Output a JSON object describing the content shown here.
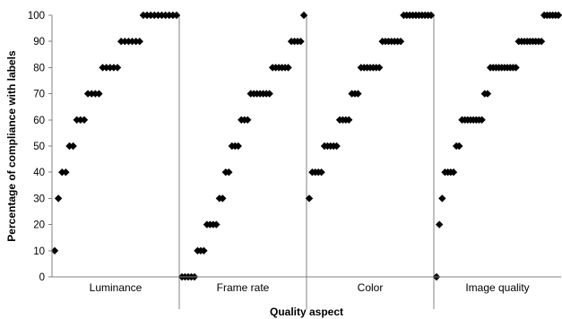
{
  "chart_data": {
    "type": "scatter",
    "title": "",
    "xlabel": "Quality aspect",
    "ylabel": "Percentage of compliance with labels",
    "ylim": [
      0,
      100
    ],
    "yticks": [
      0,
      10,
      20,
      30,
      40,
      50,
      60,
      70,
      80,
      90,
      100
    ],
    "grid": false,
    "legend": "none",
    "marker": "diamond",
    "marker_color": "#000000",
    "categories": [
      "Luminance",
      "Frame rate",
      "Color",
      "Image quality"
    ],
    "series": [
      {
        "category": "Luminance",
        "values": [
          10,
          30,
          40,
          40,
          50,
          50,
          60,
          60,
          60,
          70,
          70,
          70,
          70,
          80,
          80,
          80,
          80,
          80,
          90,
          90,
          90,
          90,
          90,
          90,
          100,
          100,
          100,
          100,
          100,
          100,
          100,
          100,
          100,
          100
        ]
      },
      {
        "category": "Frame rate",
        "values": [
          0,
          0,
          0,
          0,
          0,
          10,
          10,
          10,
          20,
          20,
          20,
          20,
          30,
          30,
          40,
          40,
          50,
          50,
          50,
          60,
          60,
          60,
          70,
          70,
          70,
          70,
          70,
          70,
          70,
          80,
          80,
          80,
          80,
          80,
          80,
          90,
          90,
          90,
          90,
          100
        ]
      },
      {
        "category": "Color",
        "values": [
          30,
          40,
          40,
          40,
          40,
          50,
          50,
          50,
          50,
          50,
          60,
          60,
          60,
          60,
          70,
          70,
          70,
          80,
          80,
          80,
          80,
          80,
          80,
          80,
          90,
          90,
          90,
          90,
          90,
          90,
          90,
          100,
          100,
          100,
          100,
          100,
          100,
          100,
          100,
          100,
          100
        ]
      },
      {
        "category": "Image quality",
        "values": [
          0,
          20,
          30,
          40,
          40,
          40,
          40,
          50,
          50,
          60,
          60,
          60,
          60,
          60,
          60,
          60,
          60,
          70,
          70,
          80,
          80,
          80,
          80,
          80,
          80,
          80,
          80,
          80,
          80,
          90,
          90,
          90,
          90,
          90,
          90,
          90,
          90,
          90,
          100,
          100,
          100,
          100,
          100,
          100
        ]
      }
    ]
  }
}
